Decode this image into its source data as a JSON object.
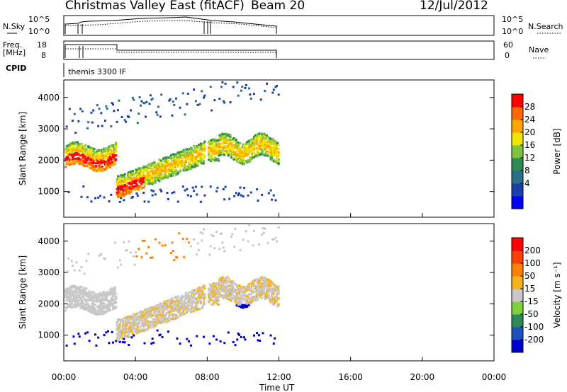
{
  "header": {
    "station": "Christmas Valley East (fitACF)",
    "beam": "Beam 20",
    "date": "12/Jul/2012"
  },
  "strips": {
    "nsky_label": "N.Sky",
    "nsearch_label": "N.Search",
    "nsky_ticks": [
      "10^5",
      "10^0"
    ],
    "nsky_right_ticks": [
      "10^5",
      "10^0"
    ],
    "freq_label_1": "Freq.",
    "freq_label_2": "[MHz]",
    "freq_ticks": [
      "18",
      "8"
    ],
    "nave_label": "Nave",
    "nave_ticks": [
      "60",
      "0"
    ],
    "cpid_label": "CPID",
    "cpid_value": "themis 3300 IF"
  },
  "chart_data": [
    {
      "type": "heatmap",
      "name": "power-panel",
      "ylabel": "Slant Range [km]",
      "yticks": [
        1000,
        2000,
        3000,
        4000
      ],
      "ylim": [
        180,
        4560
      ],
      "xlim": [
        0,
        24
      ],
      "colorbar": {
        "label": "Power [dB]",
        "ticks": [
          "28",
          "24",
          "20",
          "16",
          "12",
          "8",
          "4"
        ],
        "colors": [
          "#0000ff",
          "#1c3fa8",
          "#2a6e8c",
          "#2e8b57",
          "#7fc241",
          "#f0e400",
          "#ffa500",
          "#ff6a00",
          "#ff0000"
        ]
      }
    },
    {
      "type": "heatmap",
      "name": "velocity-panel",
      "ylabel": "Slant Range [km]",
      "yticks": [
        1000,
        2000,
        3000,
        4000
      ],
      "ylim": [
        180,
        4560
      ],
      "xlim": [
        0,
        24
      ],
      "colorbar": {
        "label": "Velocity [m s⁻¹]",
        "ticks": [
          "200",
          "100",
          "50",
          "15",
          "-15",
          "-50",
          "-100",
          "-200"
        ],
        "colors": [
          "#0000cc",
          "#2050c0",
          "#2e8b57",
          "#7fd040",
          "#c8c8c8",
          "#f5b21a",
          "#ff7f00",
          "#ff4000",
          "#ff0000"
        ]
      }
    }
  ],
  "xaxis": {
    "label": "Time UT",
    "ticks": [
      "00:00",
      "04:00",
      "08:00",
      "12:00",
      "16:00",
      "20:00",
      "00:00"
    ]
  }
}
